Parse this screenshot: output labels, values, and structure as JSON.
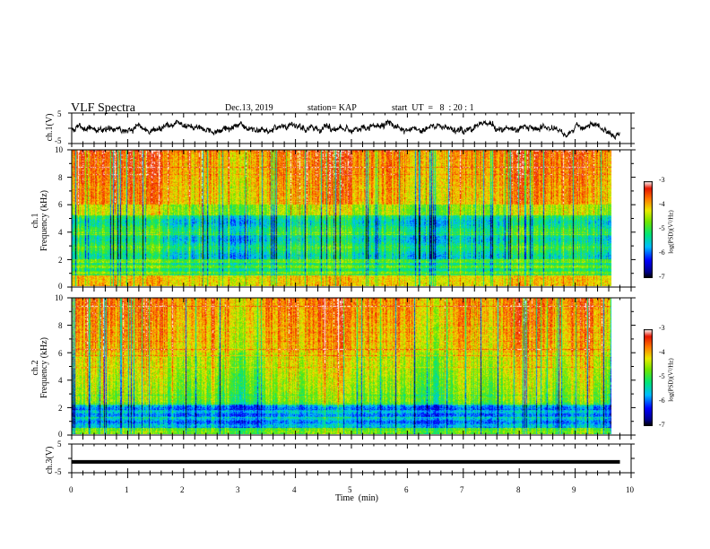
{
  "header": {
    "title": "VLF Spectra",
    "date": "Dec.13, 2019",
    "station": "station= KAP",
    "start": "start  UT  =   8  : 20 : 1"
  },
  "chart_data": [
    {
      "type": "line",
      "panel": "ch1-waveform",
      "ylabel": "ch.1(V)",
      "ylim": [
        -5,
        5
      ],
      "y_ticks": [
        "5",
        "-5"
      ],
      "xlim": [
        0,
        10
      ],
      "data_extent_min": 9.8,
      "description_values": {
        "mean_V": 0,
        "amplitude_V": 1.5
      }
    },
    {
      "type": "heatmap",
      "panel": "ch1-spectrogram",
      "ylabel": "ch.1\nFrequency (kHz)",
      "ylim": [
        0,
        10
      ],
      "y_ticks": [
        "0",
        "2",
        "4",
        "6",
        "8",
        "10"
      ],
      "xlim": [
        0,
        10
      ],
      "data_extent_min": 9.8,
      "colorbar": {
        "label": "log(PSD)(V²/Hz)",
        "range": [
          -7,
          -3
        ],
        "ticks": [
          "-3",
          "-4",
          "-5",
          "-6",
          "-7"
        ]
      }
    },
    {
      "type": "heatmap",
      "panel": "ch2-spectrogram",
      "ylabel": "ch.2\nFrequency (kHz)",
      "ylim": [
        0,
        10
      ],
      "y_ticks": [
        "0",
        "2",
        "4",
        "6",
        "8",
        "10"
      ],
      "xlim": [
        0,
        10
      ],
      "data_extent_min": 9.8,
      "colorbar": {
        "label": "log(PSD)(V²/Hz)",
        "range": [
          -7,
          -3
        ],
        "ticks": [
          "-3",
          "-4",
          "-5",
          "-6",
          "-7"
        ]
      }
    },
    {
      "type": "line",
      "panel": "ch3-waveform",
      "ylabel": "ch.3(V)",
      "ylim": [
        -5,
        5
      ],
      "y_ticks": [
        "5",
        "-5"
      ],
      "xlim": [
        0,
        10
      ],
      "data_extent_min": 9.8,
      "description_values": {
        "constant_V": -1.2
      }
    }
  ],
  "x_axis": {
    "label": "Time  (min)",
    "ticks": [
      "0",
      "1",
      "2",
      "3",
      "4",
      "5",
      "6",
      "7",
      "8",
      "9",
      "10"
    ]
  }
}
